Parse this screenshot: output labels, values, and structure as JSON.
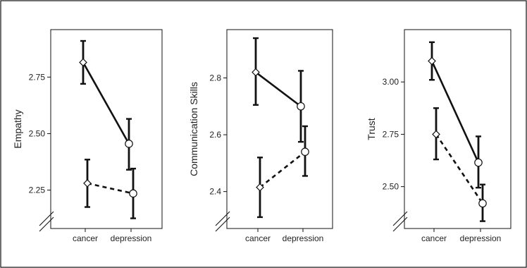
{
  "chart_data": [
    {
      "type": "line",
      "ylabel": "Empathy",
      "categories": [
        "cancer",
        "depression"
      ],
      "yticks": [
        "2.25",
        "2.50",
        "2.75"
      ],
      "ylim": [
        2.08,
        2.96
      ],
      "series": [
        {
          "style": "solid",
          "marker": [
            "diamond",
            "circle"
          ],
          "values": [
            2.815,
            2.455
          ],
          "err_low": [
            2.72,
            2.34
          ],
          "err_high": [
            2.91,
            2.565
          ]
        },
        {
          "style": "dashed",
          "marker": [
            "diamond",
            "circle"
          ],
          "values": [
            2.28,
            2.235
          ],
          "err_low": [
            2.175,
            2.125
          ],
          "err_high": [
            2.385,
            2.345
          ]
        }
      ]
    },
    {
      "type": "line",
      "ylabel": "Communication Skills",
      "categories": [
        "cancer",
        "depression"
      ],
      "yticks": [
        "2.4",
        "2.6",
        "2.8"
      ],
      "ylim": [
        2.27,
        2.97
      ],
      "series": [
        {
          "style": "solid",
          "marker": [
            "diamond",
            "circle"
          ],
          "values": [
            2.82,
            2.7
          ],
          "err_low": [
            2.705,
            2.575
          ],
          "err_high": [
            2.94,
            2.825
          ]
        },
        {
          "style": "dashed",
          "marker": [
            "diamond",
            "circle"
          ],
          "values": [
            2.415,
            2.54
          ],
          "err_low": [
            2.31,
            2.455
          ],
          "err_high": [
            2.52,
            2.63
          ]
        }
      ]
    },
    {
      "type": "line",
      "ylabel": "Trust",
      "categories": [
        "cancer",
        "depression"
      ],
      "yticks": [
        "2.50",
        "2.75",
        "3.00"
      ],
      "ylim": [
        2.3,
        3.25
      ],
      "series": [
        {
          "style": "solid",
          "marker": [
            "diamond",
            "circle"
          ],
          "values": [
            3.1,
            2.615
          ],
          "err_low": [
            3.01,
            2.495
          ],
          "err_high": [
            3.19,
            2.74
          ]
        },
        {
          "style": "dashed",
          "marker": [
            "diamond",
            "circle"
          ],
          "values": [
            2.75,
            2.42
          ],
          "err_low": [
            2.63,
            2.335
          ],
          "err_high": [
            2.875,
            2.51
          ]
        }
      ]
    }
  ]
}
